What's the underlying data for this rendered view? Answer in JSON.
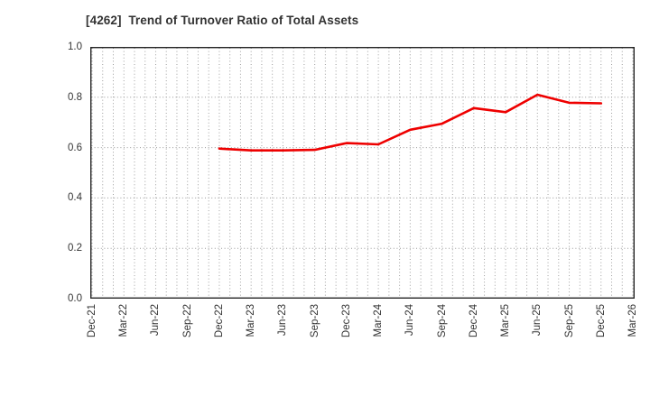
{
  "window": {
    "background": "#ffffff",
    "border_color": "#262626",
    "grid_color": "#a0a0a0",
    "text_color": "#333333"
  },
  "chart_data": {
    "type": "line",
    "title": "[4262]  Trend of Turnover Ratio of Total Assets",
    "xlabel": "",
    "ylabel": "",
    "categories": [
      "Dec-21",
      "Mar-22",
      "Jun-22",
      "Sep-22",
      "Dec-22",
      "Mar-23",
      "Jun-23",
      "Sep-23",
      "Dec-23",
      "Mar-24",
      "Jun-24",
      "Sep-24",
      "Dec-24",
      "Mar-25",
      "Jun-25",
      "Sep-25",
      "Dec-25",
      "Mar-26"
    ],
    "series": [
      {
        "name": "Turnover Ratio of Total Assets",
        "color": "#ee0000",
        "values": [
          null,
          null,
          null,
          null,
          0.596,
          0.589,
          0.589,
          0.591,
          0.618,
          0.613,
          0.671,
          0.695,
          0.757,
          0.741,
          0.81,
          0.778,
          0.776,
          null
        ]
      }
    ],
    "ylim": [
      0.0,
      1.0
    ],
    "yticks": [
      "1.0",
      "0.8",
      "0.6",
      "0.4",
      "0.2",
      "0.0"
    ],
    "grid": {
      "style": "dotted",
      "horizontal_step": 0.2,
      "vertical_every_months": 1,
      "months_per_category": 3
    },
    "legend": {
      "visible": false
    }
  }
}
